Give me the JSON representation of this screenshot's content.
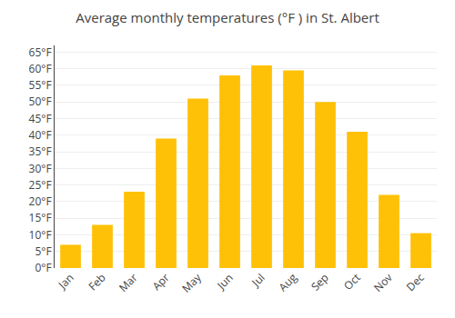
{
  "chart_data": {
    "type": "bar",
    "title": "Average monthly temperatures (°F ) in St. Albert",
    "categories": [
      "Jan",
      "Feb",
      "Mar",
      "Apr",
      "May",
      "Jun",
      "Jul",
      "Aug",
      "Sep",
      "Oct",
      "Nov",
      "Dec"
    ],
    "values": [
      7,
      13,
      23,
      39,
      51,
      58,
      61,
      59.5,
      50,
      41,
      22,
      10.5
    ],
    "color": "#FFC107",
    "ylim": [
      0,
      67
    ],
    "yticks": [
      {
        "value": 0,
        "label": "0°F"
      },
      {
        "value": 5,
        "label": "5°F"
      },
      {
        "value": 10,
        "label": "10°F"
      },
      {
        "value": 15,
        "label": "15°F"
      },
      {
        "value": 20,
        "label": "20°F"
      },
      {
        "value": 25,
        "label": "25°F"
      },
      {
        "value": 30,
        "label": "30°F"
      },
      {
        "value": 35,
        "label": "35°F"
      },
      {
        "value": 40,
        "label": "40°F"
      },
      {
        "value": 45,
        "label": "45°F"
      },
      {
        "value": 50,
        "label": "50°F"
      },
      {
        "value": 55,
        "label": "55°F"
      },
      {
        "value": 60,
        "label": "60°F"
      },
      {
        "value": 65,
        "label": "65°F"
      }
    ],
    "grid": true
  }
}
